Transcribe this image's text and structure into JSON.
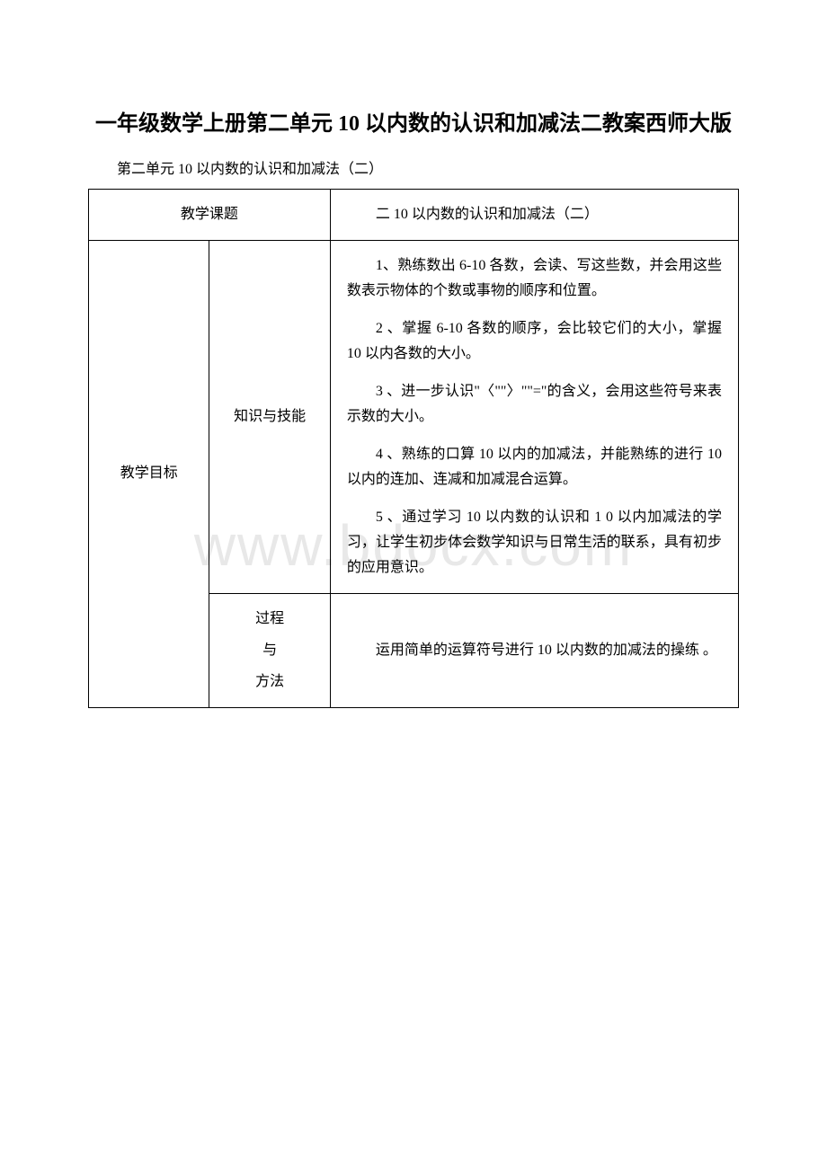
{
  "watermark": "www.bdocx.com",
  "title": "一年级数学上册第二单元 10 以内数的认识和加减法二教案西师大版",
  "subtitle": "第二单元 10 以内数的认识和加减法（二）",
  "table": {
    "row1": {
      "label": "教学课题",
      "content": "二 10 以内数的认识和加减法（二）"
    },
    "row2": {
      "label": "教学目标",
      "knowledge_label": "知识与技能",
      "objectives": {
        "item1": "1、熟练数出 6-10 各数，会读、写这些数，并会用这些数表示物体的个数或事物的顺序和位置。",
        "item2": "2 、掌握 6-10 各数的顺序，会比较它们的大小，掌握 10 以内各数的大小。",
        "item3": "3 、进一步认识\"〈\"\"〉\"\"=\"的含义，会用这些符号来表示数的大小。",
        "item4": "4 、熟练的口算 10 以内的加减法，并能熟练的进行 10 以内的连加、连减和加减混合运算。",
        "item5": "5 、通过学习 10 以内数的认识和 1 0 以内加减法的学习，让学生初步体会数学知识与日常生活的联系，具有初步的应用意识。"
      },
      "process_label_1": "过程",
      "process_label_2": "与",
      "process_label_3": "方法",
      "process_content": "运用简单的运算符号进行 10 以内数的加减法的操练 。"
    }
  },
  "colors": {
    "background": "#ffffff",
    "text": "#000000",
    "border": "#000000",
    "watermark": "#e8e8e8"
  }
}
